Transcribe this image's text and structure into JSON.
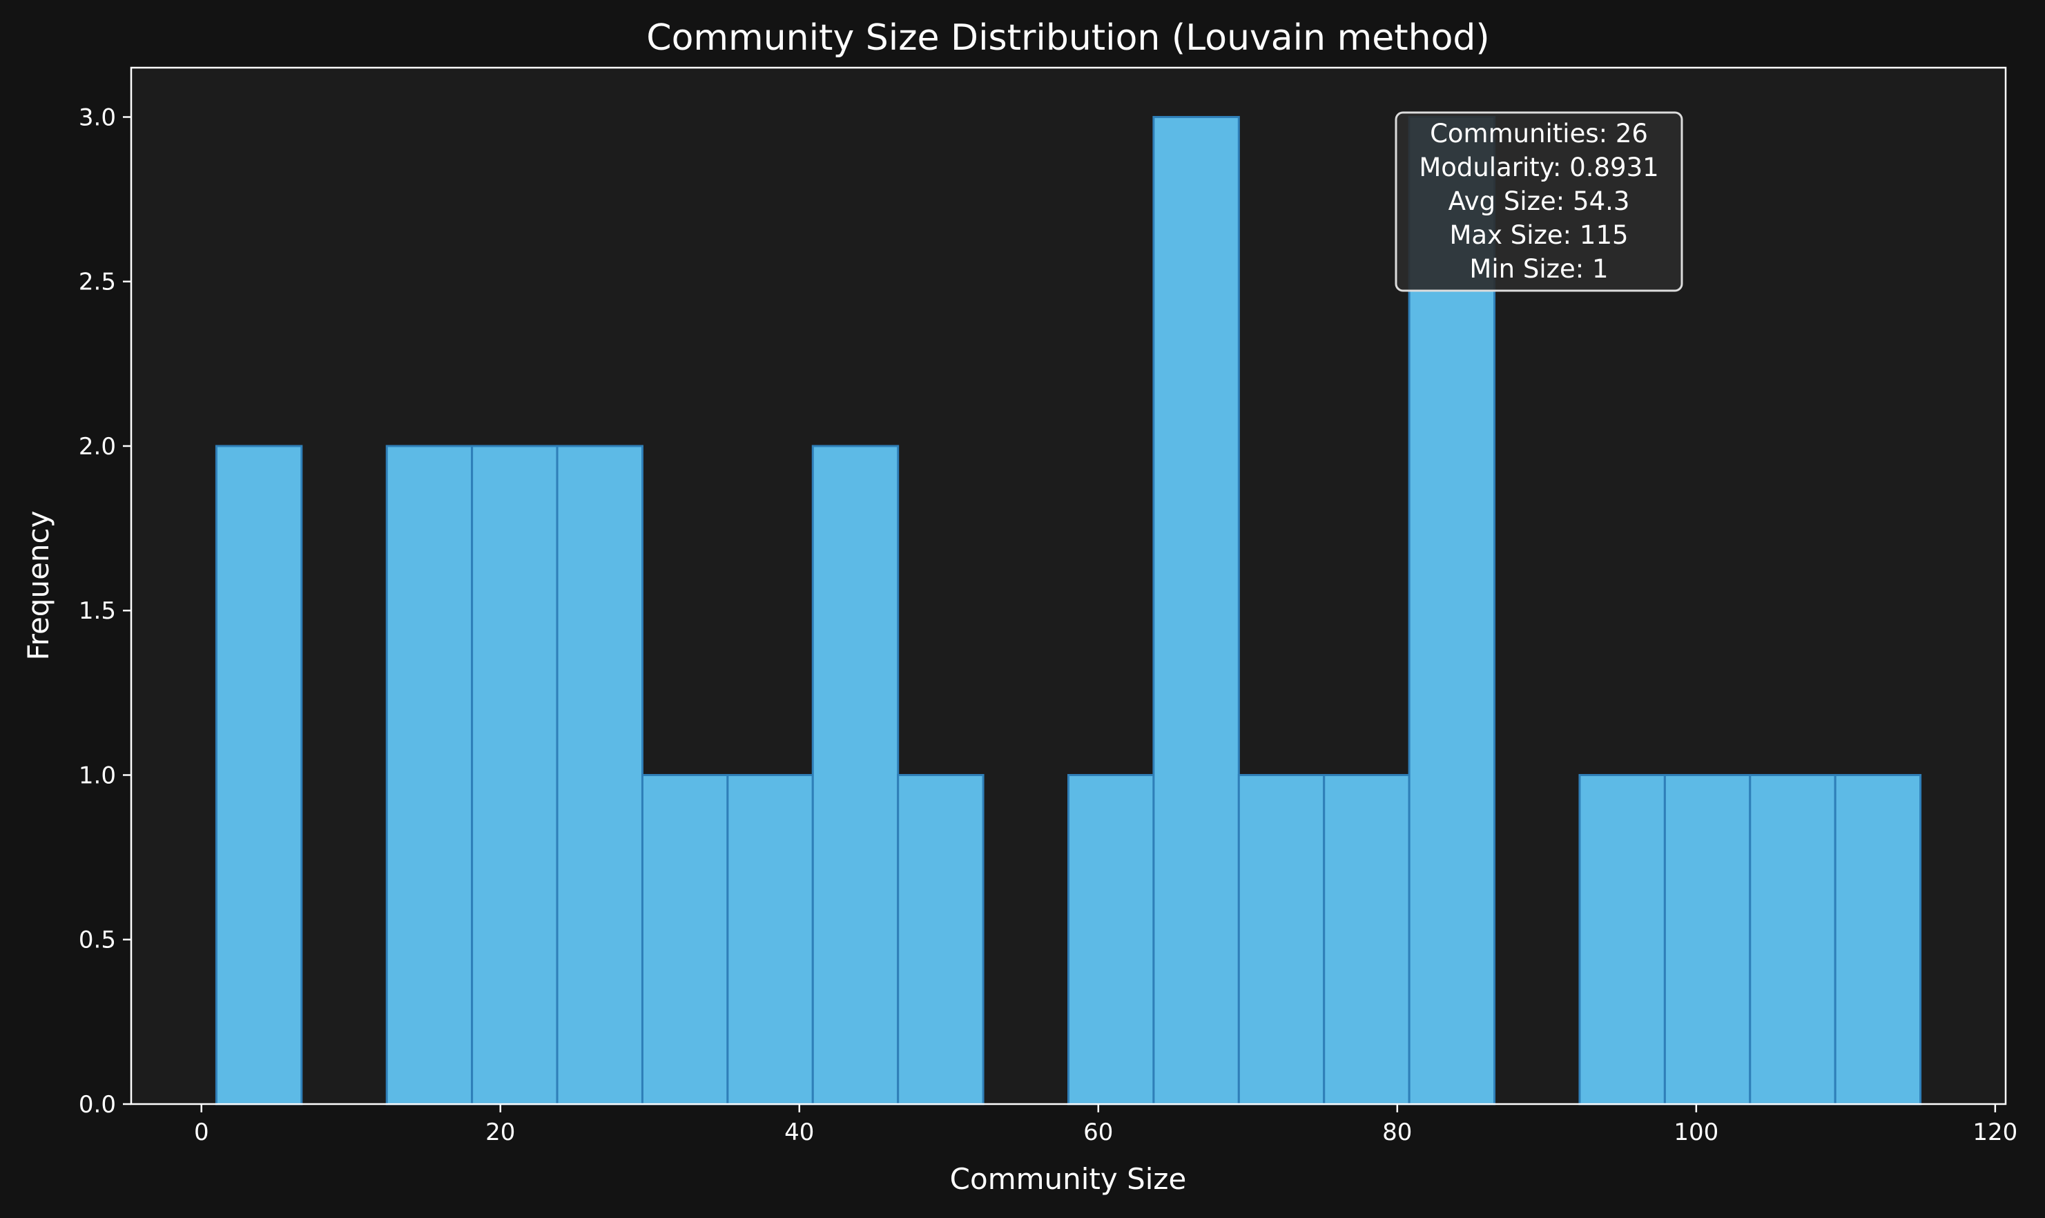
{
  "chart_data": {
    "type": "bar",
    "title": "Community Size Distribution (Louvain method)",
    "xlabel": "Community Size",
    "ylabel": "Frequency",
    "xlim": [
      -4.7,
      120.7
    ],
    "ylim": [
      0,
      3.15
    ],
    "xticks": [
      0,
      20,
      40,
      60,
      80,
      100,
      120
    ],
    "yticks": [
      0.0,
      0.5,
      1.0,
      1.5,
      2.0,
      2.5,
      3.0
    ],
    "bin_range": [
      1,
      115
    ],
    "bin_count": 20,
    "bin_edges": [
      1.0,
      6.7,
      12.4,
      18.1,
      23.8,
      29.5,
      35.2,
      40.9,
      46.6,
      52.3,
      58.0,
      63.7,
      69.4,
      75.1,
      80.8,
      86.5,
      92.2,
      97.9,
      103.6,
      109.3,
      115.0
    ],
    "counts": [
      2,
      0,
      2,
      2,
      2,
      1,
      1,
      2,
      1,
      0,
      1,
      3,
      1,
      1,
      3,
      0,
      1,
      1,
      1,
      1
    ],
    "grid": false,
    "colors": {
      "figure_bg": "#131313",
      "axes_bg": "#1c1c1c",
      "bar_fill": "#5dbae6",
      "bar_edge": "#2f7fb8",
      "text": "#ffffff",
      "spine": "#ffffff"
    },
    "stats_box": {
      "placement": "top-right",
      "lines": [
        "Communities: 26",
        "Modularity: 0.8931",
        "Avg Size: 54.3",
        "Max Size: 115",
        "Min Size: 1"
      ]
    }
  }
}
